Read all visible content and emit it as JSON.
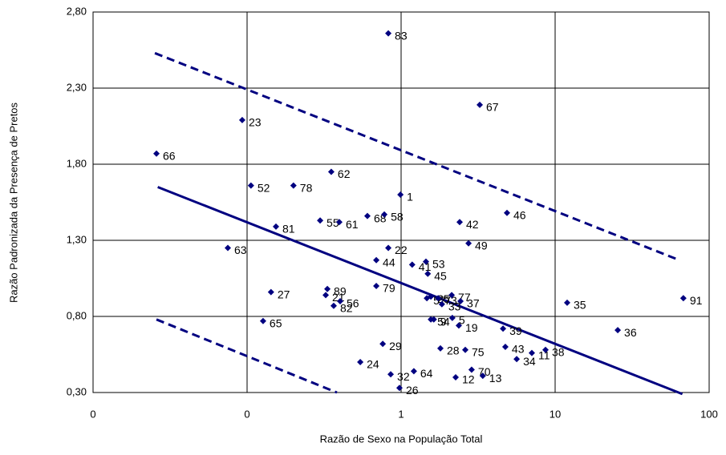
{
  "chart_data": {
    "type": "scatter",
    "x_label": "Razão de Sexo na População Total",
    "y_label": "Razão Padronizada da Presença de Pretos",
    "xscale": "log",
    "color": "#000080",
    "grid": true,
    "xlim": [
      0.01,
      100
    ],
    "xticks": [
      {
        "value": 0.01,
        "label": "0"
      },
      {
        "value": 0.1,
        "label": "0"
      },
      1,
      10,
      100
    ],
    "ylim": [
      0.3,
      2.8
    ],
    "yticks": [
      {
        "value": 0.3,
        "label": "0,30"
      },
      {
        "value": 0.8,
        "label": "0,80"
      },
      {
        "value": 1.3,
        "label": "1,30"
      },
      {
        "value": 1.8,
        "label": "1,80"
      },
      {
        "value": 2.3,
        "label": "2,30"
      },
      {
        "value": 2.8,
        "label": "2,80"
      }
    ],
    "labels": [
      "66",
      "23",
      "83",
      "67",
      "62",
      "52",
      "78",
      "1",
      "55",
      "61",
      "81",
      "68",
      "58",
      "46",
      "42",
      "49",
      "63",
      "22",
      "44",
      "41",
      "53",
      "45",
      "89",
      "27",
      "79",
      "21",
      "82",
      "56",
      "25",
      "57",
      "73",
      "77",
      "33",
      "37",
      "35",
      "91",
      "65",
      "54",
      "5",
      "19",
      "39",
      "36",
      "9",
      "29",
      "43",
      "28",
      "75",
      "34",
      "11",
      "38",
      "24",
      "64",
      "70",
      "13",
      "12",
      "32",
      "26"
    ],
    "x": [
      0.0258,
      0.093,
      0.826,
      3.24,
      0.352,
      0.106,
      0.2,
      0.99,
      0.298,
      0.397,
      0.154,
      0.604,
      0.778,
      4.87,
      2.4,
      2.74,
      0.075,
      0.826,
      0.69,
      1.18,
      1.45,
      1.49,
      0.332,
      0.143,
      0.69,
      0.324,
      0.365,
      0.402,
      1.56,
      1.47,
      1.74,
      2.13,
      1.84,
      2.43,
      11.97,
      68,
      0.127,
      1.56,
      2.15,
      2.37,
      4.59,
      25.5,
      1.63,
      0.76,
      4.75,
      1.8,
      2.61,
      5.63,
      7.06,
      8.66,
      0.543,
      1.21,
      2.87,
      3.39,
      2.26,
      0.856,
      0.976
    ],
    "values": [
      1.87,
      2.09,
      2.66,
      2.19,
      1.75,
      1.66,
      1.66,
      1.6,
      1.43,
      1.42,
      1.39,
      1.46,
      1.47,
      1.48,
      1.42,
      1.28,
      1.25,
      1.25,
      1.17,
      1.14,
      1.16,
      1.08,
      0.98,
      0.96,
      1.0,
      0.94,
      0.87,
      0.9,
      0.93,
      0.92,
      0.92,
      0.94,
      0.88,
      0.9,
      0.89,
      0.92,
      0.77,
      0.78,
      0.79,
      0.74,
      0.72,
      0.71,
      0.78,
      0.62,
      0.6,
      0.59,
      0.58,
      0.52,
      0.56,
      0.58,
      0.5,
      0.44,
      0.45,
      0.41,
      0.4,
      0.42,
      0.33
    ],
    "lines": [
      {
        "x": [
          0.0263,
          67
        ],
        "y": [
          1.65,
          0.29
        ],
        "dashed": false
      },
      {
        "x": [
          0.0252,
          64
        ],
        "y": [
          2.53,
          1.17
        ],
        "dashed": true
      },
      {
        "x": [
          0.0258,
          0.383
        ],
        "y": [
          0.78,
          0.3
        ],
        "dashed": true
      }
    ]
  }
}
